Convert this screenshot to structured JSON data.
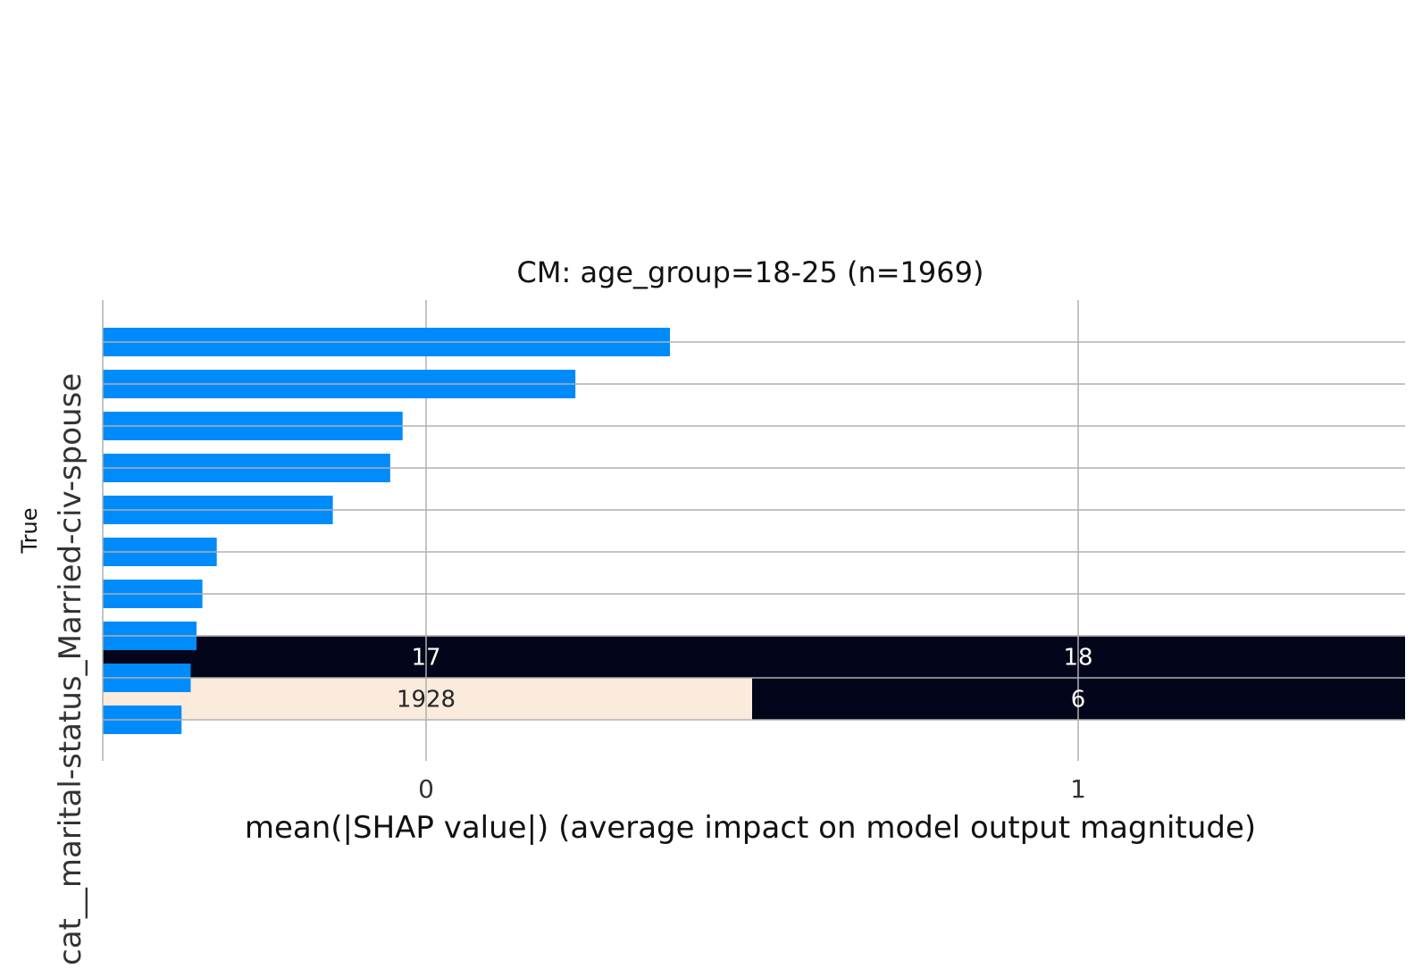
{
  "chart_data": {
    "type": "bar",
    "title": "CM: age_group=18-25 (n=1969)",
    "xlabel": "mean(|SHAP value|) (average impact on model output magnitude)",
    "ylabel": "True",
    "x_ticks": [
      "0",
      "1"
    ],
    "y_tick_overlap_label": "cat__marital-status_Married-civ-spouse",
    "colors": {
      "bar": "#008bfb",
      "cm_dark": "#03051a",
      "cm_light": "#faebdd",
      "grid": "#b0b0b0"
    },
    "bars": [
      {
        "rank": 1,
        "value": 0.374
      },
      {
        "rank": 2,
        "value": 0.229
      },
      {
        "rank": 3,
        "value": -0.036
      },
      {
        "rank": 4,
        "value": -0.055
      },
      {
        "rank": 5,
        "value": -0.143
      },
      {
        "rank": 6,
        "value": -0.321
      },
      {
        "rank": 7,
        "value": -0.343
      },
      {
        "rank": 8,
        "value": -0.352
      },
      {
        "rank": 9,
        "value": -0.361
      },
      {
        "rank": 10,
        "value": -0.375
      }
    ],
    "confusion_matrix": {
      "cells": [
        [
          {
            "label": "1928",
            "shade": "light"
          },
          {
            "label": "6",
            "shade": "dark"
          }
        ],
        [
          {
            "label": "17",
            "shade": "dark"
          },
          {
            "label": "18",
            "shade": "dark"
          }
        ]
      ]
    }
  }
}
